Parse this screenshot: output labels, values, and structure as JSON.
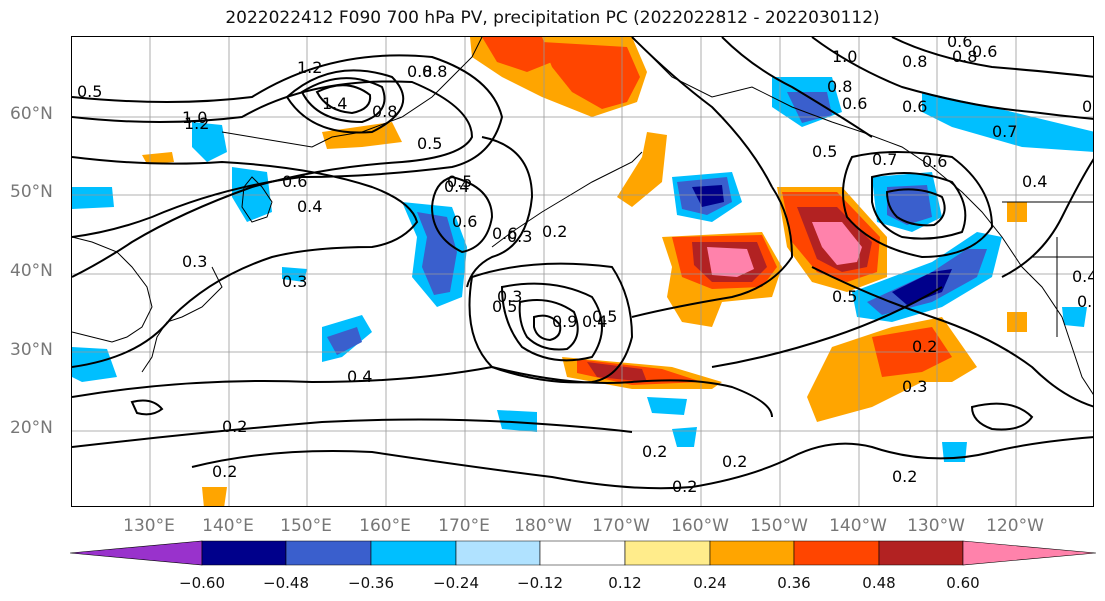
{
  "title": "2022022412 F090 700 hPa PV, precipitation PC (2022022812 - 2022030112)",
  "lat_labels": [
    "60°N",
    "50°N",
    "40°N",
    "30°N",
    "20°N"
  ],
  "lon_labels": [
    "130°E",
    "140°E",
    "150°E",
    "160°E",
    "170°E",
    "180°W",
    "170°W",
    "160°W",
    "150°W",
    "140°W",
    "130°W",
    "120°W"
  ],
  "colorbar": {
    "ticks": [
      "−0.60",
      "−0.48",
      "−0.36",
      "−0.24",
      "−0.12",
      "0.12",
      "0.24",
      "0.36",
      "0.48",
      "0.60"
    ],
    "colors": [
      "#9932cc",
      "#00008b",
      "#3a5fcd",
      "#00bfff",
      "#b0e2ff",
      "#ffffff",
      "#ffec8b",
      "#ffa500",
      "#ff4500",
      "#b22222",
      "#ff82ab"
    ]
  },
  "contour_labels": [
    "1.2",
    "1.4",
    "1.0",
    "1.2",
    "0.8",
    "0.6",
    "0.4",
    "0.8",
    "0.5",
    "0.6",
    "0.4",
    "0.5",
    "0.6",
    "0.3",
    "0.2",
    "0.3",
    "0.5",
    "0.4",
    "0.9",
    "0.5",
    "0.8",
    "0.6",
    "1.0",
    "0.8",
    "0.6",
    "0.5",
    "0.7",
    "0.6",
    "0.4",
    "0.7",
    "0.5",
    "0.4",
    "0.5",
    "0.6",
    "0.8",
    "0.3",
    "0.2",
    "0.3",
    "0.2",
    "0.2",
    "0.2",
    "0.2",
    "0.2",
    "0.3",
    "0.2",
    "0.4",
    "0.8",
    "0.6",
    "0.5",
    "0.3"
  ]
}
